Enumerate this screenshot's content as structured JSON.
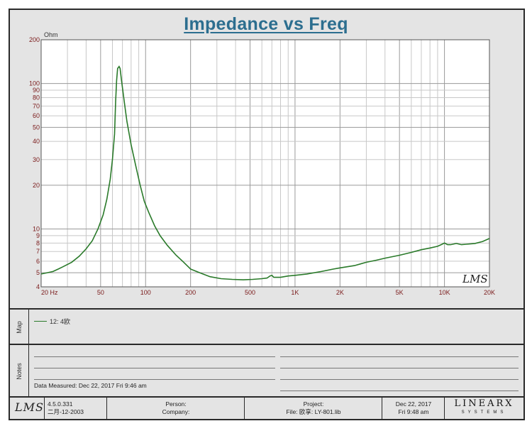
{
  "chart_data": {
    "type": "line",
    "title": "Impedance vs Freq",
    "ylabel": "Ohm",
    "xscale": "log",
    "yscale": "log",
    "xlim": [
      20,
      20000
    ],
    "ylim": [
      4,
      200
    ],
    "grid": true,
    "x_tick_labels": [
      {
        "value": 20,
        "label": "20 Hz"
      },
      {
        "value": 50,
        "label": "50"
      },
      {
        "value": 100,
        "label": "100"
      },
      {
        "value": 200,
        "label": "200"
      },
      {
        "value": 500,
        "label": "500"
      },
      {
        "value": 1000,
        "label": "1K"
      },
      {
        "value": 2000,
        "label": "2K"
      },
      {
        "value": 5000,
        "label": "5K"
      },
      {
        "value": 10000,
        "label": "10K"
      },
      {
        "value": 20000,
        "label": "20K"
      }
    ],
    "y_tick_labels": [
      {
        "value": 4,
        "label": "4"
      },
      {
        "value": 5,
        "label": "5"
      },
      {
        "value": 6,
        "label": "6"
      },
      {
        "value": 7,
        "label": "7"
      },
      {
        "value": 8,
        "label": "8"
      },
      {
        "value": 9,
        "label": "9"
      },
      {
        "value": 10,
        "label": "10"
      },
      {
        "value": 20,
        "label": "20"
      },
      {
        "value": 30,
        "label": "30"
      },
      {
        "value": 40,
        "label": "40"
      },
      {
        "value": 50,
        "label": "50"
      },
      {
        "value": 60,
        "label": "60"
      },
      {
        "value": 70,
        "label": "70"
      },
      {
        "value": 80,
        "label": "80"
      },
      {
        "value": 90,
        "label": "90"
      },
      {
        "value": 100,
        "label": "100"
      },
      {
        "value": 200,
        "label": "200"
      }
    ],
    "series": [
      {
        "name": "12: 4欧",
        "color": "#2a7a2a",
        "points": [
          [
            20,
            4.9
          ],
          [
            22,
            5.0
          ],
          [
            24,
            5.1
          ],
          [
            26,
            5.3
          ],
          [
            28,
            5.5
          ],
          [
            32,
            5.9
          ],
          [
            36,
            6.5
          ],
          [
            40,
            7.3
          ],
          [
            44,
            8.3
          ],
          [
            48,
            10.0
          ],
          [
            52,
            12.5
          ],
          [
            55,
            16
          ],
          [
            58,
            22
          ],
          [
            60,
            30
          ],
          [
            62,
            45
          ],
          [
            63,
            75
          ],
          [
            64,
            105
          ],
          [
            65,
            127
          ],
          [
            66.5,
            131
          ],
          [
            67.5,
            127
          ],
          [
            69,
            105
          ],
          [
            72,
            75
          ],
          [
            75,
            55
          ],
          [
            80,
            38
          ],
          [
            86,
            27
          ],
          [
            92,
            20
          ],
          [
            98,
            15.5
          ],
          [
            105,
            13
          ],
          [
            115,
            10.5
          ],
          [
            125,
            9.0
          ],
          [
            140,
            7.7
          ],
          [
            160,
            6.6
          ],
          [
            180,
            5.9
          ],
          [
            200,
            5.3
          ],
          [
            230,
            5.0
          ],
          [
            270,
            4.7
          ],
          [
            320,
            4.55
          ],
          [
            380,
            4.5
          ],
          [
            450,
            4.47
          ],
          [
            520,
            4.5
          ],
          [
            600,
            4.55
          ],
          [
            650,
            4.6
          ],
          [
            680,
            4.75
          ],
          [
            700,
            4.8
          ],
          [
            720,
            4.65
          ],
          [
            800,
            4.65
          ],
          [
            900,
            4.75
          ],
          [
            1000,
            4.8
          ],
          [
            1200,
            4.9
          ],
          [
            1500,
            5.1
          ],
          [
            1800,
            5.3
          ],
          [
            2000,
            5.4
          ],
          [
            2500,
            5.6
          ],
          [
            3000,
            5.9
          ],
          [
            3500,
            6.1
          ],
          [
            4000,
            6.3
          ],
          [
            5000,
            6.6
          ],
          [
            6000,
            6.9
          ],
          [
            7000,
            7.2
          ],
          [
            8000,
            7.4
          ],
          [
            9000,
            7.6
          ],
          [
            9500,
            7.8
          ],
          [
            10000,
            8.0
          ],
          [
            10500,
            7.8
          ],
          [
            11000,
            7.8
          ],
          [
            12000,
            7.95
          ],
          [
            13000,
            7.8
          ],
          [
            14000,
            7.85
          ],
          [
            16000,
            7.95
          ],
          [
            18000,
            8.2
          ],
          [
            20000,
            8.6
          ]
        ]
      }
    ]
  },
  "watermark": "LMS",
  "map": {
    "label": "Map",
    "legend_entry": "12: 4欧"
  },
  "notes": {
    "label": "Notes",
    "data_measured": "Data Measured: Dec 22, 2017  Fri  9:46 am"
  },
  "footer": {
    "logo": "LMS",
    "version": "4.5.0.331",
    "date_cn": "二月-12-2003",
    "person": "Person:",
    "company": "Company:",
    "project": "Project:",
    "file": "File: 欧享: LY-801.lib",
    "date": "Dec 22, 2017",
    "time": "Fri  9:48 am",
    "brand": "LINEARX",
    "brand_sub": "SYSTEMS"
  }
}
